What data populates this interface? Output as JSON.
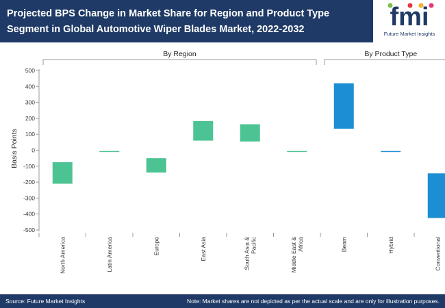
{
  "header": {
    "title": "Projected BPS Change in Market Share for Region and Product Type Segment in Global Automotive Wiper Blades Market, 2022-2032"
  },
  "logo": {
    "text": "fmi",
    "subtitle": "Future Market Insights"
  },
  "chart_data": {
    "type": "bar",
    "subtype": "floating",
    "ylabel": "Basis Points",
    "ylim": [
      -500,
      500
    ],
    "yticks": [
      500,
      400,
      300,
      200,
      100,
      0,
      -100,
      -200,
      -300,
      -400,
      -500
    ],
    "groups": [
      {
        "label": "By Region",
        "start": 0,
        "end": 5
      },
      {
        "label": "By Product Type",
        "start": 6,
        "end": 8
      }
    ],
    "bars": [
      {
        "category": "North America",
        "low": -210,
        "high": -75,
        "color": "#4cc392"
      },
      {
        "category": "Latin America",
        "low": -10,
        "high": -5,
        "color": "#4cc392"
      },
      {
        "category": "Europe",
        "low": -140,
        "high": -50,
        "color": "#4cc392"
      },
      {
        "category": "East Asia",
        "low": 60,
        "high": 183,
        "color": "#4cc392"
      },
      {
        "category": "South Asia & Pacific",
        "low": 55,
        "high": 163,
        "color": "#4cc392"
      },
      {
        "category": "Middle East & Africa",
        "low": -10,
        "high": -5,
        "color": "#4cc392"
      },
      {
        "category": "Beam",
        "low": 135,
        "high": 420,
        "color": "#1c8fd4"
      },
      {
        "category": "Hybrid",
        "low": -10,
        "high": -5,
        "color": "#1c8fd4"
      },
      {
        "category": "Conventional",
        "low": -425,
        "high": -145,
        "color": "#1c8fd4"
      }
    ]
  },
  "footer": {
    "source": "Source: Future Market Insights",
    "note": "Note: Market shares are not depicted as per the actual scale and are only for illustration purposes."
  },
  "colors": {
    "header_bg": "#1f3a66",
    "region_bar": "#4cc392",
    "product_bar": "#1c8fd4",
    "axis": "#888888"
  }
}
